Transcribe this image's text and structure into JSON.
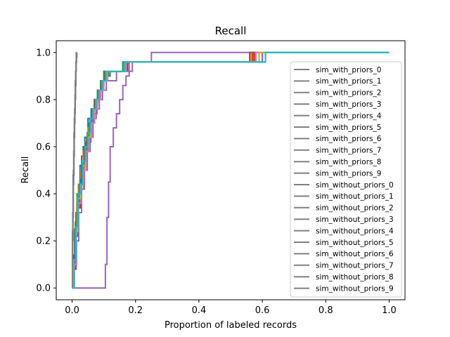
{
  "chart_data": {
    "type": "line",
    "title": "Recall",
    "xlabel": "Proportion of labeled records",
    "ylabel": "Recall",
    "xlim": [
      -0.05,
      1.05
    ],
    "ylim": [
      -0.05,
      1.05
    ],
    "xticks": [
      0.0,
      0.2,
      0.4,
      0.6,
      0.8,
      1.0
    ],
    "xtick_labels": [
      "0.0",
      "0.2",
      "0.4",
      "0.6",
      "0.8",
      "1.0"
    ],
    "yticks": [
      0.0,
      0.2,
      0.4,
      0.6,
      0.8,
      1.0
    ],
    "ytick_labels": [
      "0.0",
      "0.2",
      "0.4",
      "0.6",
      "0.8",
      "1.0"
    ],
    "grid": false,
    "legend_placement": "right",
    "legend_color": "#808080",
    "series": [
      {
        "name": "sim_with_priors_0",
        "color": "#1f77b4",
        "x": [
          0,
          0.004,
          0.008,
          0.012,
          0.016,
          0.02,
          0.025,
          0.03,
          0.035,
          0.04,
          0.05,
          0.06,
          0.07,
          0.08,
          0.09,
          0.1,
          0.12,
          0.14,
          0.16,
          0.2,
          0.4,
          0.6,
          1.0
        ],
        "y": [
          0,
          0.1,
          0.25,
          0.32,
          0.4,
          0.44,
          0.52,
          0.56,
          0.6,
          0.64,
          0.72,
          0.76,
          0.8,
          0.84,
          0.88,
          0.92,
          0.92,
          0.92,
          0.96,
          0.96,
          0.96,
          1.0,
          1.0
        ]
      },
      {
        "name": "sim_with_priors_1",
        "color": "#ff7f0e",
        "x": [
          0,
          0.005,
          0.01,
          0.015,
          0.02,
          0.028,
          0.035,
          0.042,
          0.05,
          0.058,
          0.066,
          0.075,
          0.085,
          0.095,
          0.11,
          0.13,
          0.165,
          0.3,
          0.565,
          1.0
        ],
        "y": [
          0,
          0.12,
          0.28,
          0.36,
          0.44,
          0.5,
          0.58,
          0.62,
          0.68,
          0.72,
          0.76,
          0.8,
          0.84,
          0.88,
          0.92,
          0.92,
          0.96,
          0.96,
          1.0,
          1.0
        ]
      },
      {
        "name": "sim_with_priors_2",
        "color": "#2ca02c",
        "x": [
          0,
          0.006,
          0.012,
          0.018,
          0.024,
          0.03,
          0.038,
          0.046,
          0.054,
          0.062,
          0.07,
          0.08,
          0.09,
          0.1,
          0.12,
          0.17,
          0.4,
          0.57,
          1.0
        ],
        "y": [
          0,
          0.08,
          0.22,
          0.34,
          0.42,
          0.5,
          0.56,
          0.62,
          0.68,
          0.74,
          0.78,
          0.82,
          0.86,
          0.9,
          0.92,
          0.96,
          0.96,
          1.0,
          1.0
        ]
      },
      {
        "name": "sim_with_priors_3",
        "color": "#d62728",
        "x": [
          0,
          0.005,
          0.01,
          0.016,
          0.022,
          0.03,
          0.038,
          0.046,
          0.055,
          0.065,
          0.075,
          0.085,
          0.095,
          0.105,
          0.13,
          0.175,
          0.5,
          0.575,
          1.0
        ],
        "y": [
          0,
          0.1,
          0.26,
          0.38,
          0.44,
          0.52,
          0.6,
          0.64,
          0.7,
          0.76,
          0.8,
          0.84,
          0.88,
          0.92,
          0.92,
          0.96,
          0.96,
          1.0,
          1.0
        ]
      },
      {
        "name": "sim_with_priors_4",
        "color": "#9467bd",
        "x": [
          0,
          0.01,
          0.05,
          0.1,
          0.105,
          0.11,
          0.115,
          0.12,
          0.13,
          0.14,
          0.15,
          0.16,
          0.17,
          0.18,
          0.19,
          0.25,
          0.6,
          1.0
        ],
        "y": [
          0,
          0,
          0,
          0,
          0.1,
          0.3,
          0.45,
          0.6,
          0.68,
          0.74,
          0.8,
          0.86,
          0.9,
          0.92,
          0.96,
          1.0,
          1.0,
          1.0
        ]
      },
      {
        "name": "sim_with_priors_5",
        "color": "#8c564b",
        "x": [
          0,
          0.006,
          0.012,
          0.018,
          0.026,
          0.034,
          0.042,
          0.05,
          0.06,
          0.07,
          0.08,
          0.09,
          0.1,
          0.115,
          0.17,
          0.45,
          0.58,
          1.0
        ],
        "y": [
          0,
          0.12,
          0.24,
          0.36,
          0.44,
          0.54,
          0.6,
          0.66,
          0.72,
          0.78,
          0.82,
          0.86,
          0.9,
          0.92,
          0.96,
          0.96,
          1.0,
          1.0
        ]
      },
      {
        "name": "sim_with_priors_6",
        "color": "#e377c2",
        "x": [
          0,
          0.004,
          0.01,
          0.016,
          0.024,
          0.032,
          0.04,
          0.048,
          0.056,
          0.064,
          0.072,
          0.082,
          0.092,
          0.1,
          0.125,
          0.168,
          0.5,
          0.59,
          1.0
        ],
        "y": [
          0,
          0.14,
          0.26,
          0.4,
          0.46,
          0.54,
          0.62,
          0.66,
          0.72,
          0.76,
          0.8,
          0.84,
          0.88,
          0.92,
          0.92,
          0.96,
          0.96,
          1.0,
          1.0
        ]
      },
      {
        "name": "sim_with_priors_7",
        "color": "#7f7f7f",
        "x": [
          0,
          0.002,
          0.003,
          0.004,
          0.005,
          0.006,
          0.007,
          0.008,
          0.009,
          0.01,
          0.011,
          0.012,
          0.013,
          0.014,
          0.015
        ],
        "y": [
          0,
          0.2,
          0.3,
          0.44,
          0.48,
          0.56,
          0.64,
          0.7,
          0.74,
          0.8,
          0.86,
          0.92,
          0.96,
          0.98,
          1.0
        ]
      },
      {
        "name": "sim_with_priors_8",
        "color": "#bcbd22",
        "x": [
          0,
          0.007,
          0.013,
          0.02,
          0.028,
          0.036,
          0.044,
          0.052,
          0.06,
          0.068,
          0.078,
          0.088,
          0.098,
          0.11,
          0.16,
          0.45,
          0.6,
          1.0
        ],
        "y": [
          0,
          0.1,
          0.22,
          0.36,
          0.44,
          0.52,
          0.58,
          0.64,
          0.7,
          0.76,
          0.8,
          0.84,
          0.88,
          0.92,
          0.96,
          0.96,
          1.0,
          1.0
        ]
      },
      {
        "name": "sim_with_priors_9",
        "color": "#17becf",
        "x": [
          0,
          0.005,
          0.011,
          0.017,
          0.025,
          0.033,
          0.041,
          0.049,
          0.057,
          0.066,
          0.075,
          0.084,
          0.094,
          0.105,
          0.16,
          0.45,
          0.61,
          1.0
        ],
        "y": [
          0,
          0.12,
          0.26,
          0.4,
          0.44,
          0.54,
          0.6,
          0.66,
          0.72,
          0.76,
          0.8,
          0.84,
          0.88,
          0.92,
          0.96,
          0.96,
          1.0,
          1.0
        ]
      },
      {
        "name": "sim_without_priors_0",
        "color": "#1f77b4",
        "x": [
          0,
          0.005,
          0.011,
          0.018,
          0.026,
          0.034,
          0.042,
          0.05,
          0.058,
          0.066,
          0.075,
          0.085,
          0.095,
          0.108,
          0.165,
          0.45,
          0.6,
          1.0
        ],
        "y": [
          0,
          0.14,
          0.26,
          0.38,
          0.46,
          0.54,
          0.62,
          0.66,
          0.72,
          0.76,
          0.8,
          0.84,
          0.88,
          0.92,
          0.96,
          0.96,
          1.0,
          1.0
        ]
      },
      {
        "name": "sim_without_priors_1",
        "color": "#ff7f0e",
        "x": [
          0,
          0.006,
          0.012,
          0.02,
          0.028,
          0.036,
          0.044,
          0.052,
          0.06,
          0.07,
          0.08,
          0.09,
          0.1,
          0.112,
          0.168,
          0.45,
          0.565,
          1.0
        ],
        "y": [
          0,
          0.1,
          0.24,
          0.36,
          0.42,
          0.5,
          0.58,
          0.64,
          0.7,
          0.76,
          0.8,
          0.84,
          0.88,
          0.92,
          0.96,
          0.96,
          1.0,
          1.0
        ]
      },
      {
        "name": "sim_without_priors_2",
        "color": "#2ca02c",
        "x": [
          0,
          0.004,
          0.01,
          0.016,
          0.022,
          0.03,
          0.038,
          0.046,
          0.054,
          0.062,
          0.07,
          0.08,
          0.09,
          0.1,
          0.16,
          0.45,
          0.59,
          1.0
        ],
        "y": [
          0,
          0.12,
          0.28,
          0.4,
          0.44,
          0.52,
          0.6,
          0.64,
          0.7,
          0.76,
          0.78,
          0.84,
          0.88,
          0.92,
          0.96,
          0.96,
          1.0,
          1.0
        ]
      },
      {
        "name": "sim_without_priors_3",
        "color": "#d62728",
        "x": [
          0,
          0.006,
          0.012,
          0.019,
          0.027,
          0.035,
          0.043,
          0.051,
          0.059,
          0.068,
          0.078,
          0.088,
          0.098,
          0.11,
          0.17,
          0.45,
          0.57,
          1.0
        ],
        "y": [
          0,
          0.08,
          0.22,
          0.34,
          0.44,
          0.52,
          0.58,
          0.62,
          0.7,
          0.74,
          0.8,
          0.84,
          0.88,
          0.92,
          0.96,
          0.96,
          1.0,
          1.0
        ]
      },
      {
        "name": "sim_without_priors_4",
        "color": "#9467bd",
        "x": [
          0,
          0.007,
          0.014,
          0.021,
          0.03,
          0.039,
          0.048,
          0.057,
          0.066,
          0.076,
          0.086,
          0.096,
          0.108,
          0.14,
          0.18,
          0.45,
          0.6,
          1.0
        ],
        "y": [
          0,
          0.1,
          0.2,
          0.32,
          0.42,
          0.5,
          0.58,
          0.64,
          0.72,
          0.76,
          0.8,
          0.84,
          0.88,
          0.92,
          0.96,
          0.96,
          1.0,
          1.0
        ]
      },
      {
        "name": "sim_without_priors_5",
        "color": "#8c564b",
        "x": [
          0,
          0.005,
          0.011,
          0.017,
          0.024,
          0.032,
          0.04,
          0.048,
          0.056,
          0.064,
          0.072,
          0.082,
          0.092,
          0.104,
          0.165,
          0.45,
          0.56,
          1.0
        ],
        "y": [
          0,
          0.12,
          0.24,
          0.38,
          0.44,
          0.52,
          0.6,
          0.66,
          0.72,
          0.76,
          0.8,
          0.84,
          0.88,
          0.92,
          0.96,
          0.96,
          1.0,
          1.0
        ]
      },
      {
        "name": "sim_without_priors_6",
        "color": "#e377c2",
        "x": [
          0,
          0.006,
          0.013,
          0.02,
          0.028,
          0.036,
          0.044,
          0.053,
          0.062,
          0.071,
          0.08,
          0.09,
          0.1,
          0.112,
          0.17,
          0.45,
          0.58,
          1.0
        ],
        "y": [
          0,
          0.1,
          0.26,
          0.36,
          0.44,
          0.5,
          0.58,
          0.64,
          0.7,
          0.76,
          0.8,
          0.84,
          0.88,
          0.92,
          0.96,
          0.96,
          1.0,
          1.0
        ]
      },
      {
        "name": "sim_without_priors_7",
        "color": "#7f7f7f",
        "x": [
          0,
          0.001,
          0.002,
          0.003,
          0.004,
          0.005,
          0.006,
          0.007,
          0.008,
          0.009,
          0.01,
          0.011,
          0.012,
          0.013,
          0.014
        ],
        "y": [
          0,
          0.24,
          0.32,
          0.48,
          0.5,
          0.58,
          0.66,
          0.72,
          0.76,
          0.82,
          0.88,
          0.92,
          0.96,
          1.0,
          1.0
        ]
      },
      {
        "name": "sim_without_priors_8",
        "color": "#bcbd22",
        "x": [
          0,
          0.005,
          0.012,
          0.018,
          0.026,
          0.034,
          0.042,
          0.05,
          0.058,
          0.066,
          0.075,
          0.085,
          0.095,
          0.107,
          0.165,
          0.45,
          0.59,
          1.0
        ],
        "y": [
          0,
          0.12,
          0.24,
          0.38,
          0.44,
          0.52,
          0.6,
          0.64,
          0.72,
          0.76,
          0.8,
          0.84,
          0.88,
          0.92,
          0.96,
          0.96,
          1.0,
          1.0
        ]
      },
      {
        "name": "sim_without_priors_9",
        "color": "#17becf",
        "x": [
          0,
          0.006,
          0.012,
          0.019,
          0.026,
          0.034,
          0.042,
          0.05,
          0.058,
          0.066,
          0.075,
          0.085,
          0.095,
          0.108,
          0.165,
          0.45,
          0.61,
          1.0
        ],
        "y": [
          0,
          0.12,
          0.26,
          0.4,
          0.44,
          0.54,
          0.6,
          0.66,
          0.72,
          0.76,
          0.8,
          0.84,
          0.88,
          0.92,
          0.96,
          0.96,
          1.0,
          1.0
        ]
      }
    ]
  }
}
